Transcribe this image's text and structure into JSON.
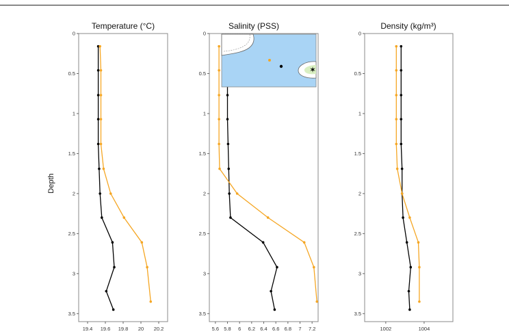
{
  "figure": {
    "ylabel": "Depth",
    "depth_ticks": [
      "0",
      "0.5",
      "1",
      "1.5",
      "2",
      "2.5",
      "3",
      "3.5"
    ]
  },
  "chart_data": [
    {
      "type": "line",
      "title": "Temperature (°C)",
      "xlabel": "",
      "ylabel": "Depth",
      "y_inverted": true,
      "xlim": [
        19.3,
        20.3
      ],
      "ylim": [
        0,
        3.6
      ],
      "x_ticks": [
        "19.4",
        "19.6",
        "19.8",
        "20",
        "20.2"
      ],
      "x_tick_values": [
        19.4,
        19.6,
        19.8,
        20.0,
        20.2
      ],
      "series": [
        {
          "color": "#000000",
          "depth": [
            0.16,
            0.46,
            0.77,
            1.07,
            1.38,
            1.69,
            2.0,
            2.3,
            2.61,
            2.92,
            3.22,
            3.45
          ],
          "values": [
            19.52,
            19.52,
            19.52,
            19.52,
            19.52,
            19.53,
            19.54,
            19.56,
            19.68,
            19.7,
            19.61,
            19.69
          ]
        },
        {
          "color": "#f5a623",
          "depth": [
            0.16,
            0.46,
            0.77,
            1.07,
            1.38,
            1.69,
            2.0,
            2.3,
            2.61,
            2.92,
            3.35
          ],
          "values": [
            19.54,
            19.55,
            19.55,
            19.55,
            19.55,
            19.58,
            19.66,
            19.81,
            20.01,
            20.07,
            20.11
          ]
        }
      ]
    },
    {
      "type": "line",
      "title": "Salinity (PSS)",
      "xlabel": "",
      "ylabel": "Depth",
      "y_inverted": true,
      "xlim": [
        5.5,
        7.3
      ],
      "ylim": [
        0,
        3.6
      ],
      "x_ticks": [
        "5.6",
        "5.8",
        "6",
        "6.2",
        "6.4",
        "6.6",
        "6.8",
        "7",
        "7.2"
      ],
      "x_tick_values": [
        5.6,
        5.8,
        6.0,
        6.2,
        6.4,
        6.6,
        6.8,
        7.0,
        7.2
      ],
      "series": [
        {
          "color": "#000000",
          "depth": [
            0.16,
            0.46,
            0.77,
            1.07,
            1.38,
            1.69,
            2.0,
            2.3,
            2.61,
            2.92,
            3.22,
            3.45
          ],
          "values": [
            5.8,
            5.8,
            5.8,
            5.8,
            5.81,
            5.82,
            5.83,
            5.85,
            6.39,
            6.62,
            6.52,
            6.58
          ]
        },
        {
          "color": "#f5a623",
          "depth": [
            0.16,
            0.46,
            0.77,
            1.07,
            1.38,
            1.69,
            2.0,
            2.3,
            2.61,
            2.92,
            3.35
          ],
          "values": [
            5.66,
            5.66,
            5.66,
            5.66,
            5.66,
            5.67,
            5.96,
            6.47,
            7.07,
            7.23,
            7.28
          ]
        }
      ],
      "inset_map": {
        "background": "#a9d4f5",
        "markers": [
          {
            "color": "#000000"
          },
          {
            "color": "#f5a623"
          }
        ]
      }
    },
    {
      "type": "line",
      "title": "Density (kg/m³)",
      "xlabel": "",
      "ylabel": "Depth",
      "y_inverted": true,
      "xlim": [
        1000.9,
        1005.5
      ],
      "ylim": [
        0,
        3.6
      ],
      "x_ticks": [
        "1002",
        "1004"
      ],
      "x_tick_values": [
        1002,
        1004
      ],
      "series": [
        {
          "color": "#000000",
          "depth": [
            0.16,
            0.46,
            0.77,
            1.07,
            1.38,
            1.69,
            2.0,
            2.3,
            2.61,
            2.92,
            3.22,
            3.45
          ],
          "values": [
            1002.8,
            1002.8,
            1002.8,
            1002.8,
            1002.8,
            1002.85,
            1002.85,
            1002.9,
            1003.1,
            1003.3,
            1003.2,
            1003.25
          ]
        },
        {
          "color": "#f5a623",
          "depth": [
            0.16,
            0.46,
            0.77,
            1.07,
            1.38,
            1.69,
            2.0,
            2.3,
            2.61,
            2.92,
            3.35
          ],
          "values": [
            1002.55,
            1002.55,
            1002.55,
            1002.55,
            1002.55,
            1002.6,
            1002.85,
            1003.25,
            1003.7,
            1003.75,
            1003.75
          ]
        }
      ]
    }
  ]
}
